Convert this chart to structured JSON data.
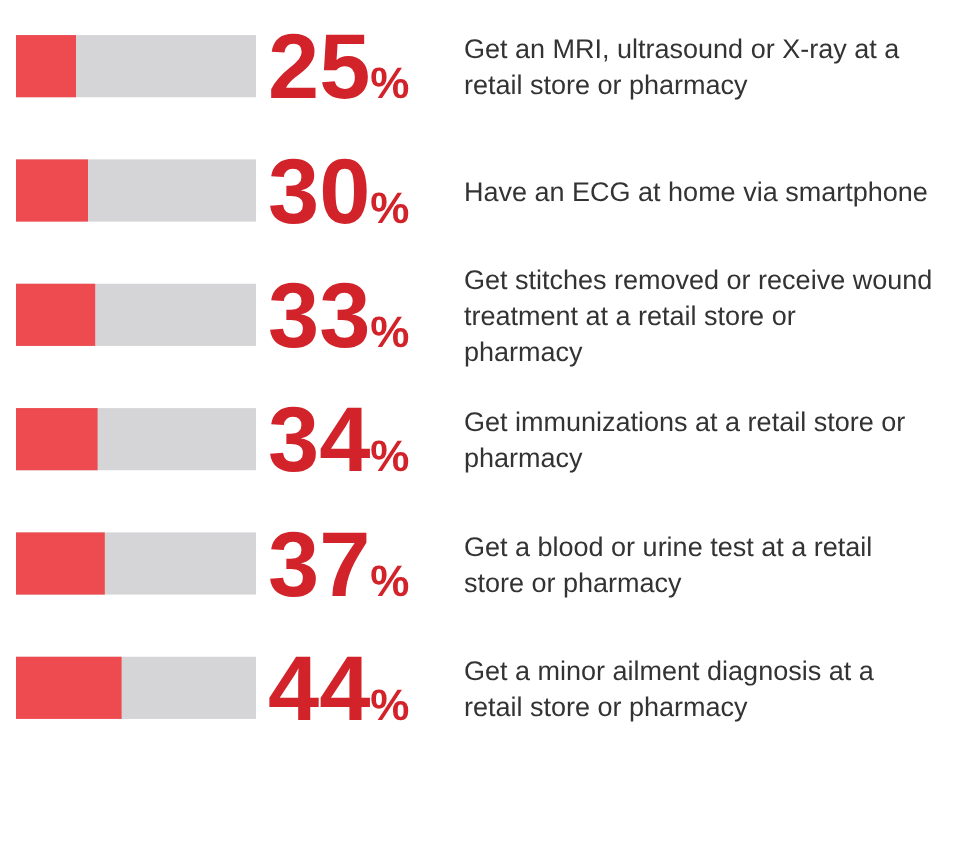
{
  "chart_data": {
    "type": "bar",
    "orientation": "horizontal",
    "categories": [
      "Get an MRI, ultrasound or X-ray at a retail store or pharmacy",
      "Have an ECG at home via smartphone",
      "Get stitches removed or receive wound treatment at a retail store or pharmacy",
      "Get immunizations at a retail store or pharmacy",
      "Get a blood or urine test at a retail store or pharmacy",
      "Get a minor ailment diagnosis at a retail store or pharmacy"
    ],
    "values": [
      25,
      30,
      33,
      34,
      37,
      44
    ],
    "value_labels": [
      "25%",
      "30%",
      "33%",
      "34%",
      "37%",
      "44%"
    ],
    "color": "#ee4b50",
    "xlim": [
      0,
      100
    ]
  }
}
